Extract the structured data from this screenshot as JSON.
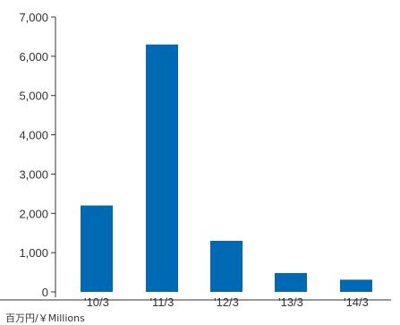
{
  "chart_data": {
    "type": "bar",
    "categories": [
      "'10/3",
      "'11/3",
      "'12/3",
      "'13/3",
      "'14/3"
    ],
    "values": [
      2200,
      6300,
      1300,
      480,
      310
    ],
    "ylim": [
      0,
      7000
    ],
    "yticks": [
      0,
      1000,
      2000,
      3000,
      4000,
      5000,
      6000,
      7000
    ],
    "ytick_labels": [
      "0",
      "1,000",
      "2,000",
      "3,000",
      "4,000",
      "5,000",
      "6,000",
      "7,000"
    ],
    "unit_label": "百万円/￥Millions",
    "bar_color": "#0069b4",
    "grid": false,
    "legend": "none"
  }
}
